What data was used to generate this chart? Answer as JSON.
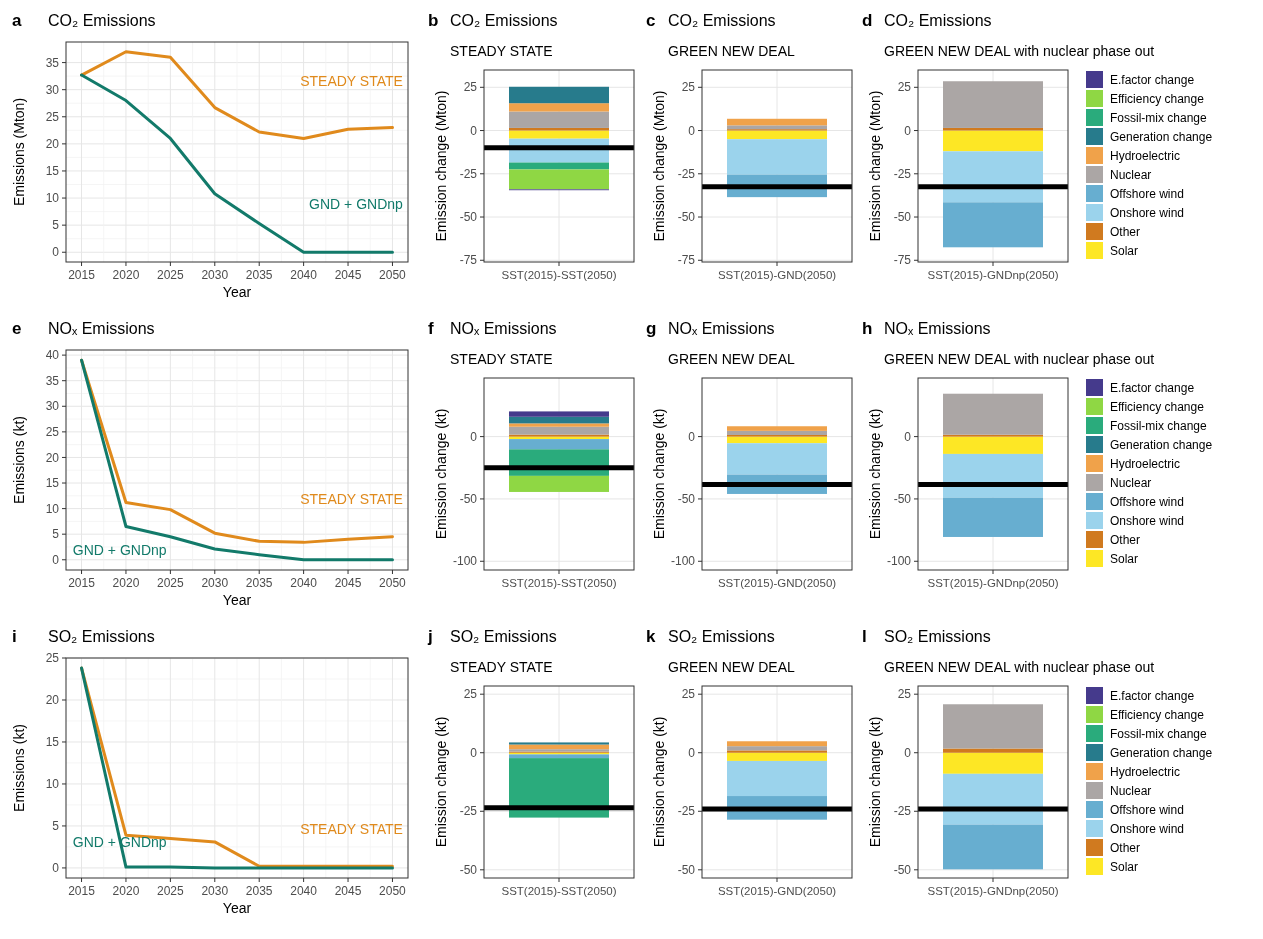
{
  "chart_data": [
    {
      "type": "line",
      "title": "CO₂ Emissions",
      "xlabel": "Year",
      "ylabel": "Emissions (Mton)",
      "x": [
        2015,
        2020,
        2025,
        2030,
        2035,
        2040,
        2045,
        2050
      ],
      "xlim": [
        2013.25,
        2051.75
      ],
      "xticks": [
        2015,
        2020,
        2025,
        2030,
        2035,
        2040,
        2045,
        2050
      ],
      "ylim": [
        -1.8,
        38.8
      ],
      "yticks": [
        0,
        5,
        10,
        15,
        20,
        25,
        30,
        35
      ],
      "grid": true,
      "legend": false,
      "annotations": [
        "a"
      ],
      "series": [
        {
          "name": "STEADY STATE",
          "color": "#e08a1c",
          "values": [
            32.7,
            37,
            36,
            26.7,
            22.2,
            21,
            22.7,
            23
          ]
        },
        {
          "name": "GND + GNDnp",
          "color": "#127a6a",
          "values": [
            32.7,
            28,
            21,
            10.8,
            5.3,
            0,
            0,
            0
          ]
        }
      ]
    },
    {
      "type": "bar",
      "stacked": true,
      "title": "CO₂ Emissions",
      "subtitle": "STEADY STATE",
      "categories": [
        "SST(2015)-SST(2050)"
      ],
      "ylabel": "Emission change (Mton)",
      "ylim": [
        -76,
        35
      ],
      "yticks": [
        -75,
        -50,
        -25,
        0,
        25
      ],
      "grid": true,
      "legend": false,
      "annotations": [
        "b"
      ],
      "ref_lines": [
        {
          "axis": "y",
          "value": -10,
          "color": "#000000"
        }
      ],
      "series": [
        {
          "color": "#fde725",
          "values": [
            -4.7
          ]
        },
        {
          "color": "#d07a1f",
          "values": [
            1.5
          ]
        },
        {
          "color": "#9bd3ec",
          "values": [
            -13.8
          ]
        },
        {
          "color": "#aba6a5",
          "values": [
            9.5
          ]
        },
        {
          "color": "#f0a24a",
          "values": [
            4.8
          ]
        },
        {
          "color": "#277b8c",
          "values": [
            9.5
          ]
        },
        {
          "color": "#2aab7c",
          "values": [
            -4
          ]
        },
        {
          "color": "#8fd744",
          "values": [
            -11.5
          ]
        },
        {
          "color": "#453a8c",
          "values": [
            -0.5
          ]
        }
      ]
    },
    {
      "type": "bar",
      "stacked": true,
      "title": "CO₂ Emissions",
      "subtitle": "GREEN NEW DEAL",
      "categories": [
        "SST(2015)-GND(2050)"
      ],
      "ylabel": "Emission change (Mton)",
      "ylim": [
        -76,
        35
      ],
      "yticks": [
        -75,
        -50,
        -25,
        0,
        25
      ],
      "grid": true,
      "legend": false,
      "annotations": [
        "c"
      ],
      "ref_lines": [
        {
          "axis": "y",
          "value": -32.5,
          "color": "#000000"
        }
      ],
      "series": [
        {
          "color": "#fde725",
          "values": [
            -5
          ]
        },
        {
          "color": "#d07a1f",
          "values": [
            0.8
          ]
        },
        {
          "color": "#9bd3ec",
          "values": [
            -20.5
          ]
        },
        {
          "color": "#67aed0",
          "values": [
            -13
          ]
        },
        {
          "color": "#aba6a5",
          "values": [
            2.2
          ]
        },
        {
          "color": "#f0a24a",
          "values": [
            3.8
          ]
        }
      ]
    },
    {
      "type": "bar",
      "stacked": true,
      "title": "CO₂ Emissions",
      "subtitle": "GREEN NEW DEAL with nuclear phase out",
      "categories": [
        "SST(2015)-GNDnp(2050)"
      ],
      "ylabel": "Emission change (Mton)",
      "ylim": [
        -76,
        35
      ],
      "yticks": [
        -75,
        -50,
        -25,
        0,
        25
      ],
      "grid": true,
      "legend": "right",
      "annotations": [
        "d"
      ],
      "ref_lines": [
        {
          "axis": "y",
          "value": -32.5,
          "color": "#000000"
        }
      ],
      "series": [
        {
          "name": "Solar",
          "color": "#fde725",
          "values": [
            -12
          ]
        },
        {
          "name": "Other",
          "color": "#d07a1f",
          "values": [
            1.5
          ]
        },
        {
          "name": "Onshore wind",
          "color": "#9bd3ec",
          "values": [
            -29.5
          ]
        },
        {
          "name": "Offshore wind",
          "color": "#67aed0",
          "values": [
            -26
          ]
        },
        {
          "name": "Nuclear",
          "color": "#aba6a5",
          "values": [
            27
          ]
        },
        {
          "name": "Hydroelectric",
          "color": "#f0a24a",
          "values": [
            null
          ]
        },
        {
          "name": "Generation change",
          "color": "#277b8c",
          "values": [
            null
          ]
        },
        {
          "name": "Fossil-mix change",
          "color": "#2aab7c",
          "values": [
            null
          ]
        },
        {
          "name": "Efficiency change",
          "color": "#8fd744",
          "values": [
            null
          ]
        },
        {
          "name": "E.factor change",
          "color": "#453a8c",
          "values": [
            null
          ]
        }
      ]
    },
    {
      "type": "line",
      "title": "NOₓ Emissions",
      "xlabel": "Year",
      "ylabel": "Emissions (kt)",
      "x": [
        2015,
        2020,
        2025,
        2030,
        2035,
        2040,
        2045,
        2050
      ],
      "xlim": [
        2013.25,
        2051.75
      ],
      "xticks": [
        2015,
        2020,
        2025,
        2030,
        2035,
        2040,
        2045,
        2050
      ],
      "ylim": [
        -2,
        41
      ],
      "yticks": [
        0,
        5,
        10,
        15,
        20,
        25,
        30,
        35,
        40
      ],
      "grid": true,
      "legend": false,
      "annotations": [
        "e"
      ],
      "series": [
        {
          "name": "STEADY STATE",
          "color": "#e08a1c",
          "values": [
            39,
            11.2,
            9.8,
            5.2,
            3.6,
            3.4,
            4,
            4.5
          ]
        },
        {
          "name": "GND + GNDnp",
          "color": "#127a6a",
          "values": [
            39,
            6.5,
            4.5,
            2.1,
            1,
            0,
            0,
            0
          ]
        }
      ]
    },
    {
      "type": "bar",
      "stacked": true,
      "title": "NOₓ Emissions",
      "subtitle": "STEADY STATE",
      "categories": [
        "SST(2015)-SST(2050)"
      ],
      "ylabel": "Emission change (kt)",
      "ylim": [
        -107,
        47
      ],
      "yticks": [
        -100,
        -50,
        0
      ],
      "grid": true,
      "legend": false,
      "annotations": [
        "f"
      ],
      "ref_lines": [
        {
          "axis": "y",
          "value": -25,
          "color": "#000000"
        }
      ],
      "series": [
        {
          "color": "#fde725",
          "values": [
            -2
          ]
        },
        {
          "color": "#d07a1f",
          "values": [
            1.6
          ]
        },
        {
          "color": "#67aed0",
          "values": [
            -8.2
          ]
        },
        {
          "color": "#aba6a5",
          "values": [
            6.3
          ]
        },
        {
          "color": "#f0a24a",
          "values": [
            2.7
          ]
        },
        {
          "color": "#277b8c",
          "values": [
            5.3
          ]
        },
        {
          "color": "#2aab7c",
          "values": [
            -21.3
          ]
        },
        {
          "color": "#8fd744",
          "values": [
            -12.9
          ]
        },
        {
          "color": "#453a8c",
          "values": [
            4.3
          ]
        }
      ]
    },
    {
      "type": "bar",
      "stacked": true,
      "title": "NOₓ Emissions",
      "subtitle": "GREEN NEW DEAL",
      "categories": [
        "SST(2015)-GND(2050)"
      ],
      "ylabel": "Emission change (kt)",
      "ylim": [
        -107,
        47
      ],
      "yticks": [
        -100,
        -50,
        0
      ],
      "grid": true,
      "legend": false,
      "annotations": [
        "g"
      ],
      "ref_lines": [
        {
          "axis": "y",
          "value": -38.5,
          "color": "#000000"
        }
      ],
      "series": [
        {
          "color": "#fde725",
          "values": [
            -5.3
          ]
        },
        {
          "color": "#d07a1f",
          "values": [
            1.3
          ]
        },
        {
          "color": "#9bd3ec",
          "values": [
            -25.2
          ]
        },
        {
          "color": "#67aed0",
          "values": [
            -15.5
          ]
        },
        {
          "color": "#aba6a5",
          "values": [
            3.3
          ]
        },
        {
          "color": "#f0a24a",
          "values": [
            3.7
          ]
        }
      ]
    },
    {
      "type": "bar",
      "stacked": true,
      "title": "NOₓ Emissions",
      "subtitle": "GREEN NEW DEAL with nuclear phase out",
      "categories": [
        "SST(2015)-GNDnp(2050)"
      ],
      "ylabel": "Emission change (kt)",
      "ylim": [
        -107,
        47
      ],
      "yticks": [
        -100,
        -50,
        0
      ],
      "grid": true,
      "legend": "right",
      "annotations": [
        "h"
      ],
      "ref_lines": [
        {
          "axis": "y",
          "value": -38.5,
          "color": "#000000"
        }
      ],
      "series": [
        {
          "name": "Solar",
          "color": "#fde725",
          "values": [
            -13.9
          ]
        },
        {
          "name": "Other",
          "color": "#d07a1f",
          "values": [
            1.5
          ]
        },
        {
          "name": "Onshore wind",
          "color": "#9bd3ec",
          "values": [
            -35.1
          ]
        },
        {
          "name": "Offshore wind",
          "color": "#67aed0",
          "values": [
            -31.5
          ]
        },
        {
          "name": "Nuclear",
          "color": "#aba6a5",
          "values": [
            32.9
          ]
        },
        {
          "name": "Hydroelectric",
          "color": "#f0a24a",
          "values": [
            null
          ]
        },
        {
          "name": "Generation change",
          "color": "#277b8c",
          "values": [
            null
          ]
        },
        {
          "name": "Fossil-mix change",
          "color": "#2aab7c",
          "values": [
            null
          ]
        },
        {
          "name": "Efficiency change",
          "color": "#8fd744",
          "values": [
            null
          ]
        },
        {
          "name": "E.factor change",
          "color": "#453a8c",
          "values": [
            null
          ]
        }
      ]
    },
    {
      "type": "line",
      "title": "SO₂ Emissions",
      "xlabel": "Year",
      "ylabel": "Emissions (kt)",
      "x": [
        2015,
        2020,
        2025,
        2030,
        2035,
        2040,
        2045,
        2050
      ],
      "xlim": [
        2013.25,
        2051.75
      ],
      "xticks": [
        2015,
        2020,
        2025,
        2030,
        2035,
        2040,
        2045,
        2050
      ],
      "ylim": [
        -1.2,
        25
      ],
      "yticks": [
        0,
        5,
        10,
        15,
        20,
        25
      ],
      "grid": true,
      "legend": false,
      "annotations": [
        "i"
      ],
      "series": [
        {
          "name": "STEADY STATE",
          "color": "#e08a1c",
          "values": [
            23.8,
            3.9,
            3.5,
            3.1,
            0.2,
            0.2,
            0.2,
            0.2
          ]
        },
        {
          "name": "GND + GNDnp",
          "color": "#127a6a",
          "values": [
            23.8,
            0.1,
            0.1,
            0,
            0,
            0,
            0,
            0
          ]
        }
      ]
    },
    {
      "type": "bar",
      "stacked": true,
      "title": "SO₂ Emissions",
      "subtitle": "STEADY STATE",
      "categories": [
        "SST(2015)-SST(2050)"
      ],
      "ylabel": "Emission change (kt)",
      "ylim": [
        -53.5,
        28.5
      ],
      "yticks": [
        -50,
        -25,
        0,
        25
      ],
      "grid": true,
      "legend": false,
      "annotations": [
        "j"
      ],
      "ref_lines": [
        {
          "axis": "y",
          "value": -23.5,
          "color": "#000000"
        }
      ],
      "series": [
        {
          "color": "#fde725",
          "values": [
            -0.7
          ]
        },
        {
          "color": "#d07a1f",
          "values": [
            0.5
          ]
        },
        {
          "color": "#67aed0",
          "values": [
            -1.6
          ]
        },
        {
          "color": "#aba6a5",
          "values": [
            1
          ]
        },
        {
          "color": "#f0a24a",
          "values": [
            2
          ]
        },
        {
          "color": "#277b8c",
          "values": [
            0.9
          ]
        },
        {
          "color": "#2aab7c",
          "values": [
            -25.4
          ]
        }
      ]
    },
    {
      "type": "bar",
      "stacked": true,
      "title": "SO₂ Emissions",
      "subtitle": "GREEN NEW DEAL",
      "categories": [
        "SST(2015)-GND(2050)"
      ],
      "ylabel": "Emission change (kt)",
      "ylim": [
        -53.5,
        28.5
      ],
      "yticks": [
        -50,
        -25,
        0,
        25
      ],
      "grid": true,
      "legend": false,
      "annotations": [
        "k"
      ],
      "ref_lines": [
        {
          "axis": "y",
          "value": -24,
          "color": "#000000"
        }
      ],
      "series": [
        {
          "color": "#fde725",
          "values": [
            -3.5
          ]
        },
        {
          "color": "#d07a1f",
          "values": [
            1
          ]
        },
        {
          "color": "#9bd3ec",
          "values": [
            -15
          ]
        },
        {
          "color": "#67aed0",
          "values": [
            -10.1
          ]
        },
        {
          "color": "#aba6a5",
          "values": [
            1.8
          ]
        },
        {
          "color": "#f0a24a",
          "values": [
            2.1
          ]
        }
      ]
    },
    {
      "type": "bar",
      "stacked": true,
      "title": "SO₂ Emissions",
      "subtitle": "GREEN NEW DEAL with nuclear phase out",
      "categories": [
        "SST(2015)-GNDnp(2050)"
      ],
      "ylabel": "Emission change (kt)",
      "ylim": [
        -53.5,
        28.5
      ],
      "yticks": [
        -50,
        -25,
        0,
        25
      ],
      "grid": true,
      "legend": "right",
      "annotations": [
        "l"
      ],
      "ref_lines": [
        {
          "axis": "y",
          "value": -24,
          "color": "#000000"
        }
      ],
      "series": [
        {
          "name": "Solar",
          "color": "#fde725",
          "values": [
            -9
          ]
        },
        {
          "name": "Other",
          "color": "#d07a1f",
          "values": [
            1.8
          ]
        },
        {
          "name": "Onshore wind",
          "color": "#9bd3ec",
          "values": [
            -21.7
          ]
        },
        {
          "name": "Offshore wind",
          "color": "#67aed0",
          "values": [
            -19.1
          ]
        },
        {
          "name": "Nuclear",
          "color": "#aba6a5",
          "values": [
            18.9
          ]
        },
        {
          "name": "Hydroelectric",
          "color": "#f0a24a",
          "values": [
            null
          ]
        },
        {
          "name": "Generation change",
          "color": "#277b8c",
          "values": [
            null
          ]
        },
        {
          "name": "Fossil-mix change",
          "color": "#2aab7c",
          "values": [
            null
          ]
        },
        {
          "name": "Efficiency change",
          "color": "#8fd744",
          "values": [
            null
          ]
        },
        {
          "name": "E.factor change",
          "color": "#453a8c",
          "values": [
            null
          ]
        }
      ]
    }
  ]
}
